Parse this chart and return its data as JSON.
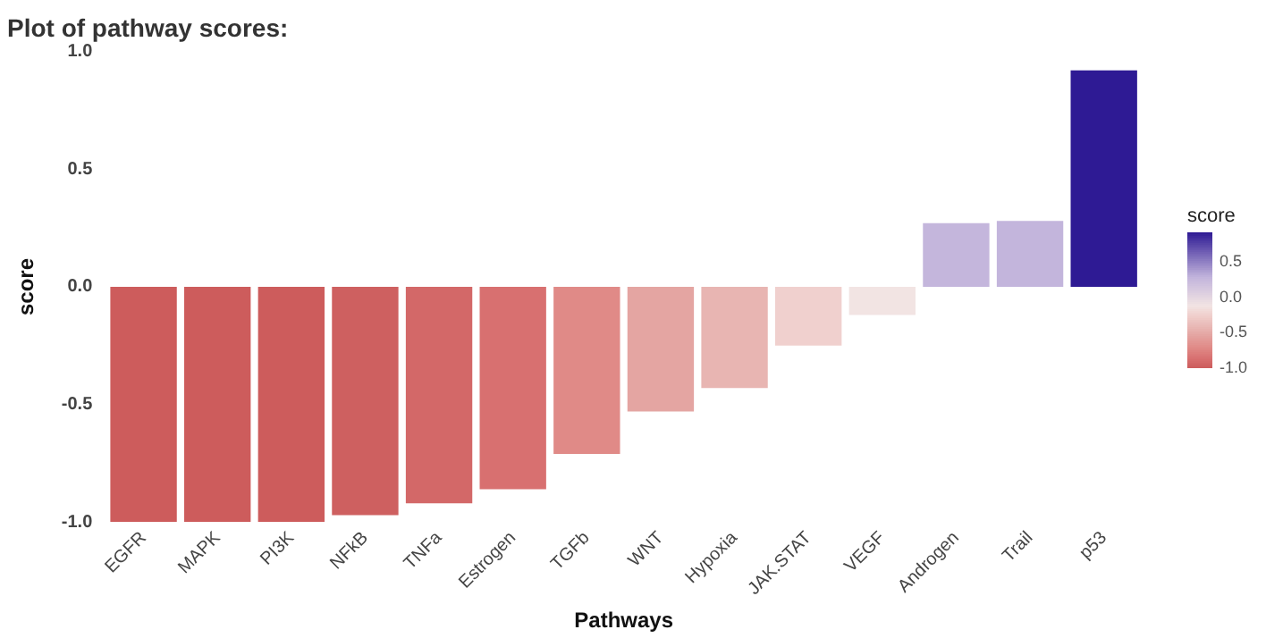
{
  "chart_data": {
    "type": "bar",
    "title": "Plot of pathway scores:",
    "xlabel": "Pathways",
    "ylabel": "score",
    "clabel": "score",
    "categories": [
      "EGFR",
      "MAPK",
      "PI3K",
      "NFkB",
      "TNFa",
      "Estrogen",
      "TGFb",
      "WNT",
      "Hypoxia",
      "JAK.STAT",
      "VEGF",
      "Androgen",
      "Trail",
      "p53"
    ],
    "values": [
      -1,
      -1,
      -1,
      -0.97,
      -0.92,
      -0.86,
      -0.71,
      -0.53,
      -0.43,
      -0.25,
      -0.12,
      0.27,
      0.28,
      0.92
    ],
    "colors": [
      "#cd5c5c",
      "#cd5c5c",
      "#cd5c5c",
      "#ce6060",
      "#d36868",
      "#d87070",
      "#e08a87",
      "#e4a5a2",
      "#e8b5b2",
      "#f0d0ce",
      "#f2e4e3",
      "#c4b6dc",
      "#c3b5dc",
      "#2e1a94"
    ],
    "ylim": [
      -1,
      1
    ],
    "yticks": [
      {
        "value": -1,
        "label": "-1.0"
      },
      -0.5,
      {
        "value": 0,
        "label": "0.0"
      },
      0.5,
      {
        "value": 1,
        "label": "1.0"
      }
    ],
    "clim": [
      -1,
      0.92
    ],
    "cticks": [
      {
        "value": -1,
        "label": "-1.0"
      },
      -0.5,
      {
        "value": 0,
        "label": "0.0"
      },
      0.5
    ],
    "grid": false,
    "legend": false
  }
}
